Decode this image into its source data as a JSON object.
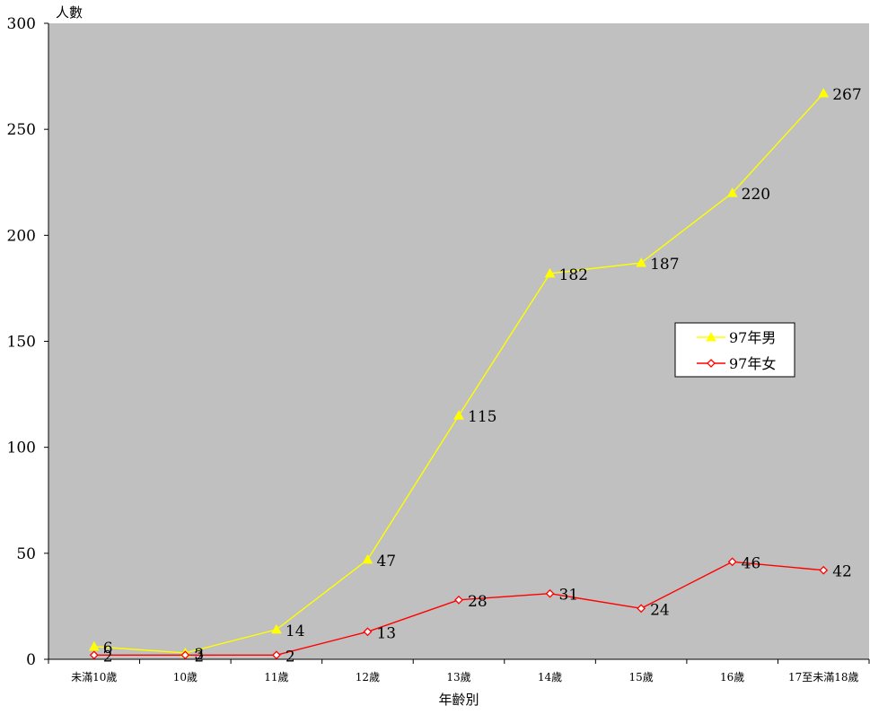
{
  "chart_data": {
    "type": "line",
    "ylabel": "人數",
    "xlabel": "年齡別",
    "categories": [
      "未滿10歲",
      "10歲",
      "11歲",
      "12歲",
      "13歲",
      "14歲",
      "15歲",
      "16歲",
      "17至未滿18歲"
    ],
    "ylim": [
      0,
      300
    ],
    "yticks": [
      "0",
      "50",
      "100",
      "150",
      "200",
      "250",
      "300"
    ],
    "grid": false,
    "legend_position": "right",
    "plot_background": "#c0c0c0",
    "series": [
      {
        "name": "97年男",
        "color": "#ffff00",
        "marker": "triangle",
        "values": [
          6,
          3,
          14,
          47,
          115,
          182,
          187,
          220,
          267
        ],
        "labels": [
          "6",
          "3",
          "14",
          "47",
          "115",
          "182",
          "187",
          "220",
          "267"
        ]
      },
      {
        "name": "97年女",
        "color": "#ff0000",
        "marker": "diamond",
        "values": [
          2,
          2,
          2,
          13,
          28,
          31,
          24,
          46,
          42
        ],
        "labels": [
          "2",
          "2",
          "2",
          "13",
          "28",
          "31",
          "24",
          "46",
          "42"
        ]
      }
    ]
  }
}
